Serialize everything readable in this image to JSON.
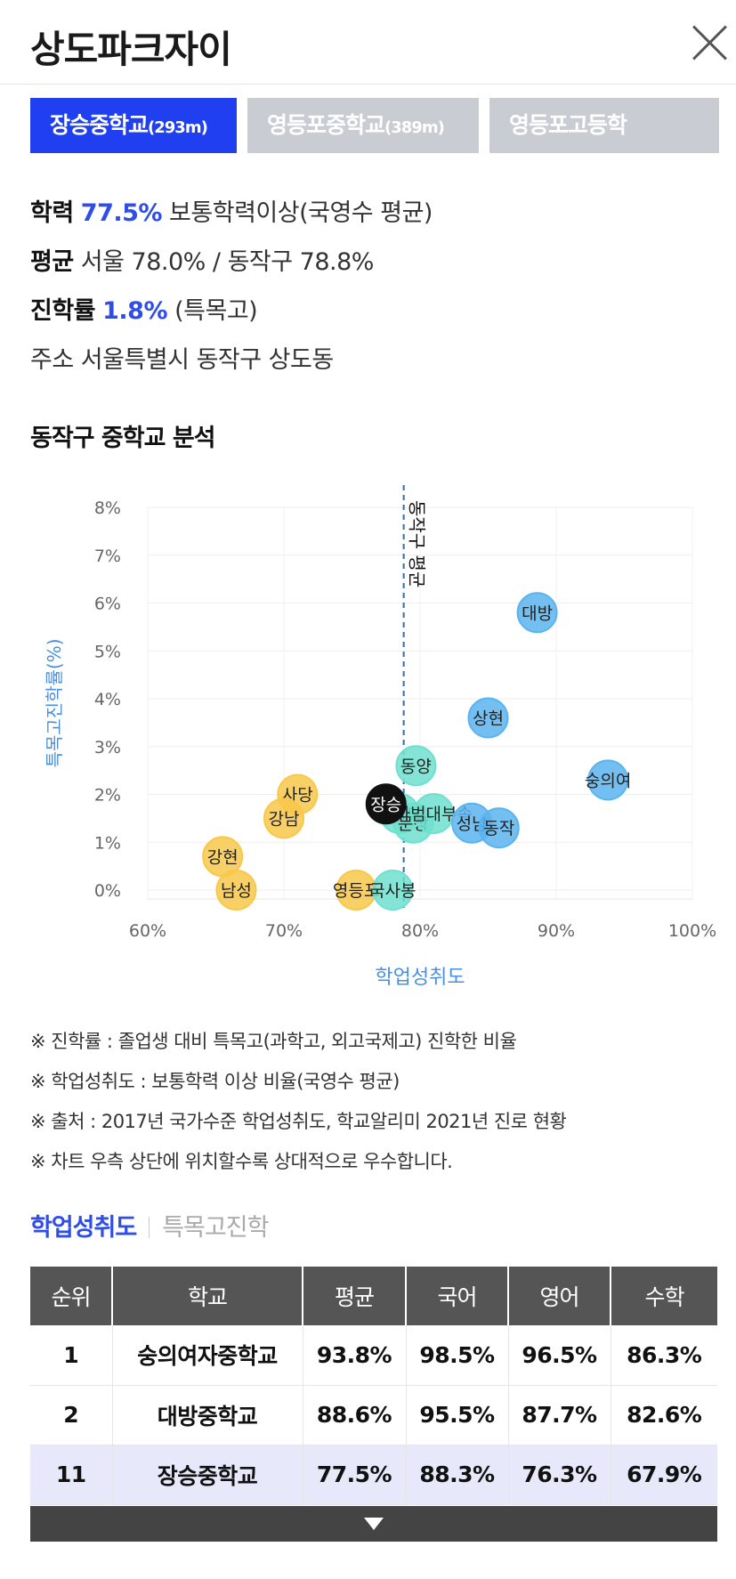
{
  "header": {
    "title": "상도파크자이"
  },
  "tabs": [
    {
      "name": "장승중학교",
      "dist": "(293m)"
    },
    {
      "name": "영등포중학교",
      "dist": "(389m)"
    },
    {
      "name": "영등포고등학",
      "dist": ""
    }
  ],
  "info": {
    "academic": {
      "label": "학력",
      "value": "77.5%",
      "desc": "보통학력이상(국영수 평균)"
    },
    "average": {
      "label": "평균",
      "text": "서울 78.0% / 동작구 78.8%"
    },
    "advance": {
      "label": "진학률",
      "value": "1.8%",
      "desc": "(특목고)"
    },
    "address": {
      "label": "주소",
      "text": "서울특별시 동작구 상도동"
    }
  },
  "section_title": "동작구 중학교 분석",
  "chart_data": {
    "type": "scatter",
    "xlabel": "학업성취도",
    "ylabel": "특목고진학률(%)",
    "xlim": [
      60,
      100
    ],
    "ylim": [
      0,
      8
    ],
    "xticks": [
      "60%",
      "70%",
      "80%",
      "90%",
      "100%"
    ],
    "yticks": [
      "0%",
      "1%",
      "2%",
      "3%",
      "4%",
      "5%",
      "6%",
      "7%",
      "8%"
    ],
    "grid": true,
    "reference_line": {
      "label": "동작구 평균",
      "x": 78.8
    },
    "colors": {
      "yellow": "#f8c84a",
      "teal": "#6fe0cf",
      "blue": "#5ab4ee",
      "black": "#111111",
      "line": "#2f6fb0",
      "axis": "#4a90e2"
    },
    "points": [
      {
        "label": "대방",
        "x": 88.6,
        "y": 5.8,
        "color": "blue"
      },
      {
        "label": "상현",
        "x": 85.0,
        "y": 3.6,
        "color": "blue"
      },
      {
        "label": "숭의여",
        "x": 93.8,
        "y": 2.3,
        "color": "blue"
      },
      {
        "label": "동양",
        "x": 79.7,
        "y": 2.6,
        "color": "teal"
      },
      {
        "label": "사당",
        "x": 71.0,
        "y": 2.0,
        "color": "yellow"
      },
      {
        "label": "강남",
        "x": 70.0,
        "y": 1.5,
        "color": "yellow"
      },
      {
        "label": "중앙대",
        "x": 78.5,
        "y": 1.6,
        "color": "teal"
      },
      {
        "label": "문창",
        "x": 79.5,
        "y": 1.4,
        "color": "teal"
      },
      {
        "label": "사범대부속",
        "x": 81.0,
        "y": 1.6,
        "color": "teal"
      },
      {
        "label": "성남",
        "x": 83.8,
        "y": 1.4,
        "color": "blue"
      },
      {
        "label": "동작",
        "x": 85.8,
        "y": 1.3,
        "color": "blue"
      },
      {
        "label": "장승",
        "x": 77.5,
        "y": 1.8,
        "color": "black"
      },
      {
        "label": "강현",
        "x": 65.5,
        "y": 0.7,
        "color": "yellow"
      },
      {
        "label": "남성",
        "x": 66.5,
        "y": 0.0,
        "color": "yellow"
      },
      {
        "label": "영등포",
        "x": 75.3,
        "y": 0.0,
        "color": "yellow"
      },
      {
        "label": "국사봉",
        "x": 78.0,
        "y": 0.0,
        "color": "teal"
      }
    ]
  },
  "notes": [
    "※ 진학률 : 졸업생 대비 특목고(과학고, 외고국제고) 진학한 비율",
    "※ 학업성취도 : 보통학력 이상 비율(국영수 평균)",
    "※ 출처 : 2017년 국가수준 학업성취도, 학교알리미 2021년 진로 현황",
    "※ 차트 우측 상단에 위치할수록 상대적으로 우수합니다."
  ],
  "subtabs": {
    "active": "학업성취도",
    "inactive": "특목고진학"
  },
  "table": {
    "headers": [
      "순위",
      "학교",
      "평균",
      "국어",
      "영어",
      "수학"
    ],
    "rows": [
      [
        "1",
        "숭의여자중학교",
        "93.8%",
        "98.5%",
        "96.5%",
        "86.3%"
      ],
      [
        "2",
        "대방중학교",
        "88.6%",
        "95.5%",
        "87.7%",
        "82.6%"
      ],
      [
        "11",
        "장승중학교",
        "77.5%",
        "88.3%",
        "76.3%",
        "67.9%"
      ]
    ]
  }
}
